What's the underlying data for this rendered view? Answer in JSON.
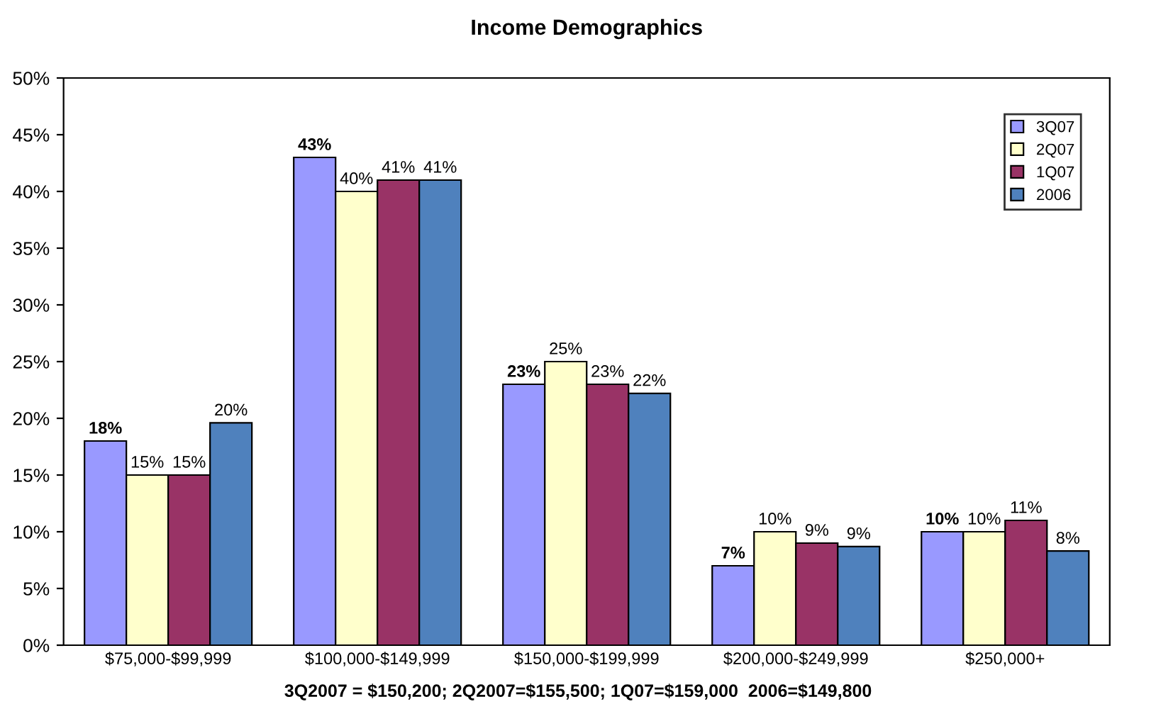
{
  "chart_data": {
    "type": "bar",
    "title": "Income Demographics",
    "categories": [
      "$75,000-$99,999",
      "$100,000-$149,999",
      "$150,000-$199,999",
      "$200,000-$249,999",
      "$250,000+"
    ],
    "series": [
      {
        "name": "3Q07",
        "color": "#9999ff",
        "values": [
          18,
          43,
          23,
          7,
          10
        ],
        "value_labels": [
          "18%",
          "43%",
          "23%",
          "7%",
          "10%"
        ]
      },
      {
        "name": "2Q07",
        "color": "#ffffcc",
        "values": [
          15,
          40,
          25,
          10,
          10
        ],
        "value_labels": [
          "15%",
          "40%",
          "25%",
          "10%",
          "10%"
        ]
      },
      {
        "name": "1Q07",
        "color": "#993366",
        "values": [
          15,
          41,
          23,
          9,
          11
        ],
        "value_labels": [
          "15%",
          "41%",
          "23%",
          "9%",
          "11%"
        ]
      },
      {
        "name": "2006",
        "color": "#4f81bd",
        "values": [
          19.6,
          41,
          22.2,
          8.7,
          8.3
        ],
        "value_labels": [
          "20%",
          "41%",
          "22%",
          "9%",
          "8%"
        ]
      }
    ],
    "ylim": [
      0,
      50
    ],
    "yticks": [
      {
        "value": 0,
        "label": "0%"
      },
      {
        "value": 5,
        "label": "5%"
      },
      {
        "value": 10,
        "label": "10%"
      },
      {
        "value": 15,
        "label": "15%"
      },
      {
        "value": 20,
        "label": "20%"
      },
      {
        "value": 25,
        "label": "25%"
      },
      {
        "value": 30,
        "label": "30%"
      },
      {
        "value": 35,
        "label": "35%"
      },
      {
        "value": 40,
        "label": "40%"
      },
      {
        "value": 45,
        "label": "45%"
      },
      {
        "value": 50,
        "label": "50%"
      }
    ],
    "legend": "top right",
    "grid": false,
    "annotations": [
      "3Q2007 = $150,200; 2Q2007=$155,500; 1Q07=$159,000  2006=$149,800"
    ]
  }
}
